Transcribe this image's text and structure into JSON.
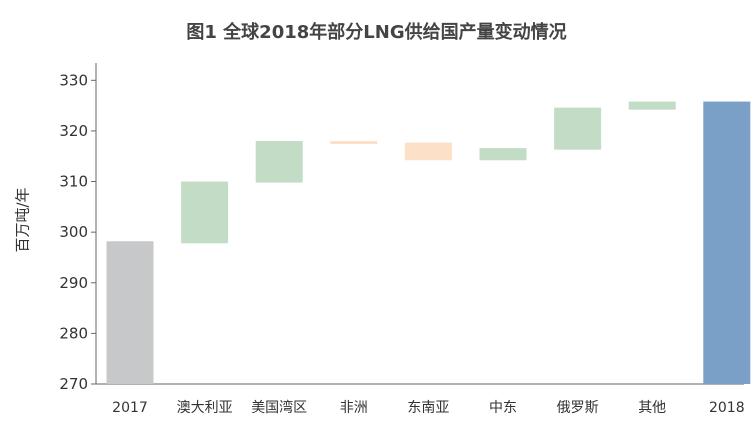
{
  "chart_data": {
    "type": "bar",
    "subtype": "waterfall",
    "title": "图1 全球2018年部分LNG供给国产量变动情况",
    "ylabel": "百万吨/年",
    "xlabel": "",
    "ylim": [
      270,
      335
    ],
    "yticks": [
      270,
      280,
      290,
      300,
      310,
      320,
      330
    ],
    "grid": false,
    "categories": [
      "2017",
      "澳大利亚",
      "美国湾区",
      "非洲",
      "东南亚",
      "中东",
      "俄罗斯",
      "其他",
      "2018"
    ],
    "bars": [
      {
        "category": "2017",
        "kind": "total",
        "start": 270,
        "end": 298.2
      },
      {
        "category": "澳大利亚",
        "kind": "increase",
        "start": 297.8,
        "end": 310.0
      },
      {
        "category": "美国湾区",
        "kind": "increase",
        "start": 309.8,
        "end": 318.0
      },
      {
        "category": "非洲",
        "kind": "decrease",
        "start": 318.0,
        "end": 317.4
      },
      {
        "category": "东南亚",
        "kind": "decrease",
        "start": 317.7,
        "end": 314.2
      },
      {
        "category": "中东",
        "kind": "increase",
        "start": 314.2,
        "end": 316.6
      },
      {
        "category": "俄罗斯",
        "kind": "increase",
        "start": 316.3,
        "end": 324.6
      },
      {
        "category": "其他",
        "kind": "increase",
        "start": 324.2,
        "end": 325.8
      },
      {
        "category": "2018",
        "kind": "total",
        "start": 270,
        "end": 325.8
      }
    ],
    "colors": {
      "total_start": "#c7c8ca",
      "total_end": "#7aa0c7",
      "increase": "#c2dcc6",
      "decrease": "#fde0c8",
      "axis": "#666666"
    }
  }
}
